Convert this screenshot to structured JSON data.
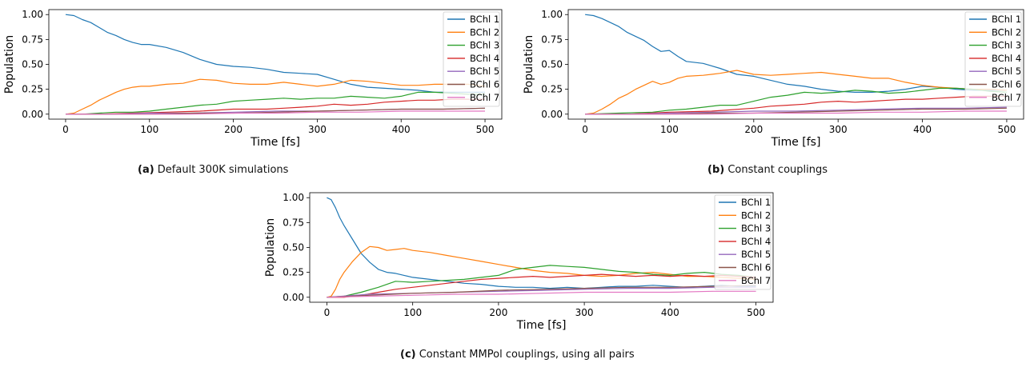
{
  "captions": [
    {
      "label": "(a)",
      "text": "Default 300K simulations"
    },
    {
      "label": "(b)",
      "text": "Constant couplings"
    },
    {
      "label": "(c)",
      "text": "Constant MMPol couplings, using all pairs"
    }
  ],
  "legend_colors": [
    "#1f77b4",
    "#ff7f0e",
    "#2ca02c",
    "#d62728",
    "#9467bd",
    "#8c564b",
    "#e377c2"
  ],
  "chart_data": [
    {
      "type": "line",
      "title": "",
      "xlabel": "Time [fs]",
      "ylabel": "Population",
      "xlim": [
        -20,
        520
      ],
      "ylim": [
        -0.05,
        1.05
      ],
      "xticks": [
        0,
        100,
        200,
        300,
        400,
        500
      ],
      "yticks": [
        0.0,
        0.25,
        0.5,
        0.75,
        1.0
      ],
      "ytick_labels": [
        "0.00",
        "0.25",
        "0.50",
        "0.75",
        "1.00"
      ],
      "grid": false,
      "legend_position": "right",
      "series": [
        {
          "name": "BChl 1",
          "x": [
            0,
            10,
            20,
            30,
            40,
            50,
            60,
            70,
            80,
            90,
            100,
            120,
            140,
            160,
            180,
            200,
            220,
            240,
            260,
            280,
            300,
            320,
            340,
            360,
            380,
            400,
            420,
            440,
            460,
            480,
            500
          ],
          "y": [
            1.0,
            0.99,
            0.95,
            0.92,
            0.87,
            0.82,
            0.79,
            0.75,
            0.72,
            0.7,
            0.7,
            0.67,
            0.62,
            0.55,
            0.5,
            0.48,
            0.47,
            0.45,
            0.42,
            0.41,
            0.4,
            0.35,
            0.3,
            0.27,
            0.26,
            0.25,
            0.24,
            0.22,
            0.22,
            0.22,
            0.22
          ]
        },
        {
          "name": "BChl 2",
          "x": [
            0,
            10,
            20,
            30,
            40,
            50,
            60,
            70,
            80,
            90,
            100,
            120,
            140,
            160,
            180,
            200,
            220,
            240,
            260,
            280,
            300,
            320,
            340,
            360,
            380,
            400,
            420,
            440,
            460,
            480,
            500
          ],
          "y": [
            0.0,
            0.01,
            0.05,
            0.09,
            0.14,
            0.18,
            0.22,
            0.25,
            0.27,
            0.28,
            0.28,
            0.3,
            0.31,
            0.35,
            0.34,
            0.31,
            0.3,
            0.3,
            0.32,
            0.3,
            0.28,
            0.3,
            0.34,
            0.33,
            0.31,
            0.29,
            0.29,
            0.3,
            0.3,
            0.3,
            0.28
          ]
        },
        {
          "name": "BChl 3",
          "x": [
            0,
            20,
            40,
            60,
            80,
            100,
            120,
            140,
            160,
            180,
            200,
            220,
            240,
            260,
            280,
            300,
            320,
            340,
            360,
            380,
            400,
            420,
            440,
            460,
            480,
            500
          ],
          "y": [
            0.0,
            0.0,
            0.01,
            0.02,
            0.02,
            0.03,
            0.05,
            0.07,
            0.09,
            0.1,
            0.13,
            0.14,
            0.15,
            0.16,
            0.15,
            0.16,
            0.16,
            0.18,
            0.17,
            0.16,
            0.18,
            0.22,
            0.22,
            0.21,
            0.2,
            0.2
          ]
        },
        {
          "name": "BChl 4",
          "x": [
            0,
            40,
            80,
            120,
            160,
            200,
            220,
            240,
            260,
            280,
            300,
            320,
            340,
            360,
            380,
            400,
            420,
            440,
            460,
            480,
            500
          ],
          "y": [
            0.0,
            0.0,
            0.01,
            0.02,
            0.03,
            0.05,
            0.05,
            0.05,
            0.06,
            0.07,
            0.08,
            0.1,
            0.09,
            0.1,
            0.12,
            0.13,
            0.14,
            0.14,
            0.15,
            0.15,
            0.15
          ]
        },
        {
          "name": "BChl 5",
          "x": [
            0,
            50,
            100,
            150,
            200,
            250,
            300,
            350,
            400,
            450,
            500
          ],
          "y": [
            0.0,
            0.0,
            0.01,
            0.01,
            0.02,
            0.03,
            0.03,
            0.04,
            0.05,
            0.05,
            0.06
          ]
        },
        {
          "name": "BChl 6",
          "x": [
            0,
            50,
            100,
            150,
            200,
            250,
            300,
            350,
            400,
            450,
            500
          ],
          "y": [
            0.0,
            0.0,
            0.0,
            0.01,
            0.01,
            0.02,
            0.03,
            0.04,
            0.05,
            0.05,
            0.06
          ]
        },
        {
          "name": "BChl 7",
          "x": [
            0,
            50,
            100,
            150,
            200,
            250,
            300,
            350,
            400,
            450,
            500
          ],
          "y": [
            0.0,
            0.0,
            0.0,
            0.0,
            0.01,
            0.01,
            0.02,
            0.02,
            0.03,
            0.03,
            0.03
          ]
        }
      ]
    },
    {
      "type": "line",
      "title": "",
      "xlabel": "Time [fs]",
      "ylabel": "Population",
      "xlim": [
        -20,
        520
      ],
      "ylim": [
        -0.05,
        1.05
      ],
      "xticks": [
        0,
        100,
        200,
        300,
        400,
        500
      ],
      "yticks": [
        0.0,
        0.25,
        0.5,
        0.75,
        1.0
      ],
      "ytick_labels": [
        "0.00",
        "0.25",
        "0.50",
        "0.75",
        "1.00"
      ],
      "grid": false,
      "legend_position": "right",
      "series": [
        {
          "name": "BChl 1",
          "x": [
            0,
            10,
            20,
            30,
            40,
            50,
            60,
            70,
            80,
            90,
            100,
            110,
            120,
            140,
            160,
            180,
            200,
            220,
            240,
            260,
            280,
            300,
            320,
            340,
            360,
            380,
            400,
            420,
            440,
            460,
            480,
            500
          ],
          "y": [
            1.0,
            0.99,
            0.96,
            0.92,
            0.88,
            0.82,
            0.78,
            0.74,
            0.68,
            0.63,
            0.64,
            0.58,
            0.53,
            0.51,
            0.46,
            0.4,
            0.38,
            0.34,
            0.3,
            0.28,
            0.25,
            0.23,
            0.22,
            0.22,
            0.23,
            0.25,
            0.28,
            0.27,
            0.25,
            0.24,
            0.24,
            0.24
          ]
        },
        {
          "name": "BChl 2",
          "x": [
            0,
            10,
            20,
            30,
            40,
            50,
            60,
            70,
            80,
            90,
            100,
            110,
            120,
            140,
            160,
            180,
            200,
            220,
            240,
            260,
            280,
            300,
            320,
            340,
            360,
            380,
            400,
            420,
            440,
            460,
            480,
            500
          ],
          "y": [
            0.0,
            0.01,
            0.05,
            0.1,
            0.16,
            0.2,
            0.25,
            0.29,
            0.33,
            0.3,
            0.32,
            0.36,
            0.38,
            0.39,
            0.41,
            0.44,
            0.4,
            0.39,
            0.4,
            0.41,
            0.42,
            0.4,
            0.38,
            0.36,
            0.36,
            0.32,
            0.29,
            0.27,
            0.26,
            0.25,
            0.25,
            0.24
          ]
        },
        {
          "name": "BChl 3",
          "x": [
            0,
            40,
            80,
            100,
            120,
            140,
            160,
            180,
            200,
            220,
            240,
            260,
            280,
            300,
            320,
            340,
            360,
            380,
            400,
            420,
            440,
            460,
            480,
            500
          ],
          "y": [
            0.0,
            0.01,
            0.02,
            0.04,
            0.05,
            0.07,
            0.09,
            0.09,
            0.13,
            0.17,
            0.19,
            0.22,
            0.21,
            0.22,
            0.24,
            0.23,
            0.21,
            0.22,
            0.24,
            0.26,
            0.26,
            0.25,
            0.23,
            0.22
          ]
        },
        {
          "name": "BChl 4",
          "x": [
            0,
            50,
            100,
            150,
            200,
            220,
            240,
            260,
            280,
            300,
            320,
            340,
            360,
            380,
            400,
            420,
            440,
            460,
            480,
            500
          ],
          "y": [
            0.0,
            0.0,
            0.02,
            0.03,
            0.06,
            0.08,
            0.09,
            0.1,
            0.12,
            0.13,
            0.12,
            0.13,
            0.14,
            0.15,
            0.15,
            0.16,
            0.17,
            0.18,
            0.18,
            0.18
          ]
        },
        {
          "name": "BChl 5",
          "x": [
            0,
            50,
            100,
            150,
            200,
            250,
            300,
            350,
            400,
            450,
            500
          ],
          "y": [
            0.0,
            0.0,
            0.01,
            0.02,
            0.03,
            0.03,
            0.04,
            0.05,
            0.06,
            0.06,
            0.07
          ]
        },
        {
          "name": "BChl 6",
          "x": [
            0,
            50,
            100,
            150,
            200,
            250,
            300,
            350,
            400,
            450,
            500
          ],
          "y": [
            0.0,
            0.0,
            0.0,
            0.01,
            0.01,
            0.02,
            0.03,
            0.04,
            0.05,
            0.05,
            0.06
          ]
        },
        {
          "name": "BChl 7",
          "x": [
            0,
            50,
            100,
            150,
            200,
            250,
            300,
            350,
            400,
            450,
            500
          ],
          "y": [
            0.0,
            0.0,
            0.0,
            0.0,
            0.01,
            0.01,
            0.01,
            0.02,
            0.02,
            0.03,
            0.03
          ]
        }
      ]
    },
    {
      "type": "line",
      "title": "",
      "xlabel": "Time [fs]",
      "ylabel": "Population",
      "xlim": [
        -20,
        520
      ],
      "ylim": [
        -0.05,
        1.05
      ],
      "xticks": [
        0,
        100,
        200,
        300,
        400,
        500
      ],
      "yticks": [
        0.0,
        0.25,
        0.5,
        0.75,
        1.0
      ],
      "ytick_labels": [
        "0.00",
        "0.25",
        "0.50",
        "0.75",
        "1.00"
      ],
      "grid": false,
      "legend_position": "right",
      "series": [
        {
          "name": "BChl 1",
          "x": [
            0,
            5,
            10,
            15,
            20,
            30,
            40,
            50,
            60,
            70,
            80,
            90,
            100,
            120,
            140,
            160,
            180,
            200,
            220,
            240,
            260,
            280,
            300,
            320,
            340,
            360,
            380,
            400,
            420,
            440,
            460,
            480,
            500
          ],
          "y": [
            1.0,
            0.98,
            0.9,
            0.8,
            0.72,
            0.58,
            0.44,
            0.35,
            0.28,
            0.25,
            0.24,
            0.22,
            0.2,
            0.18,
            0.16,
            0.14,
            0.13,
            0.11,
            0.1,
            0.1,
            0.09,
            0.1,
            0.09,
            0.1,
            0.11,
            0.11,
            0.12,
            0.11,
            0.1,
            0.11,
            0.12,
            0.11,
            0.11
          ]
        },
        {
          "name": "BChl 2",
          "x": [
            0,
            5,
            10,
            15,
            20,
            30,
            40,
            50,
            60,
            70,
            80,
            90,
            100,
            120,
            140,
            160,
            180,
            200,
            220,
            240,
            260,
            280,
            300,
            320,
            340,
            360,
            380,
            400,
            420,
            440,
            460,
            480,
            500
          ],
          "y": [
            0.0,
            0.01,
            0.08,
            0.18,
            0.25,
            0.36,
            0.45,
            0.51,
            0.5,
            0.47,
            0.48,
            0.49,
            0.47,
            0.45,
            0.42,
            0.39,
            0.36,
            0.33,
            0.3,
            0.27,
            0.25,
            0.24,
            0.22,
            0.21,
            0.22,
            0.24,
            0.25,
            0.23,
            0.21,
            0.21,
            0.2,
            0.19,
            0.18
          ]
        },
        {
          "name": "BChl 3",
          "x": [
            0,
            20,
            40,
            60,
            80,
            100,
            120,
            140,
            160,
            180,
            200,
            220,
            240,
            260,
            280,
            300,
            320,
            340,
            360,
            380,
            400,
            420,
            440,
            460,
            480,
            500
          ],
          "y": [
            0.0,
            0.01,
            0.05,
            0.1,
            0.16,
            0.15,
            0.16,
            0.17,
            0.18,
            0.2,
            0.22,
            0.28,
            0.3,
            0.32,
            0.31,
            0.3,
            0.28,
            0.26,
            0.25,
            0.23,
            0.22,
            0.24,
            0.25,
            0.23,
            0.22,
            0.2
          ]
        },
        {
          "name": "BChl 4",
          "x": [
            0,
            20,
            40,
            60,
            80,
            100,
            120,
            140,
            160,
            180,
            200,
            220,
            240,
            260,
            280,
            300,
            320,
            340,
            360,
            380,
            400,
            420,
            440,
            460,
            480,
            500
          ],
          "y": [
            0.0,
            0.0,
            0.02,
            0.05,
            0.08,
            0.1,
            0.12,
            0.14,
            0.16,
            0.18,
            0.19,
            0.2,
            0.21,
            0.2,
            0.21,
            0.22,
            0.23,
            0.22,
            0.21,
            0.22,
            0.21,
            0.22,
            0.21,
            0.22,
            0.21,
            0.2
          ]
        },
        {
          "name": "BChl 5",
          "x": [
            0,
            50,
            100,
            150,
            200,
            250,
            300,
            350,
            400,
            450,
            500
          ],
          "y": [
            0.0,
            0.03,
            0.04,
            0.05,
            0.06,
            0.07,
            0.08,
            0.09,
            0.09,
            0.1,
            0.1
          ]
        },
        {
          "name": "BChl 6",
          "x": [
            0,
            50,
            100,
            150,
            200,
            250,
            300,
            350,
            400,
            450,
            500
          ],
          "y": [
            0.0,
            0.02,
            0.04,
            0.05,
            0.07,
            0.08,
            0.09,
            0.1,
            0.1,
            0.11,
            0.12
          ]
        },
        {
          "name": "BChl 7",
          "x": [
            0,
            50,
            100,
            150,
            200,
            250,
            300,
            350,
            400,
            450,
            500
          ],
          "y": [
            0.0,
            0.01,
            0.02,
            0.03,
            0.03,
            0.04,
            0.05,
            0.05,
            0.05,
            0.06,
            0.06
          ]
        }
      ]
    }
  ]
}
